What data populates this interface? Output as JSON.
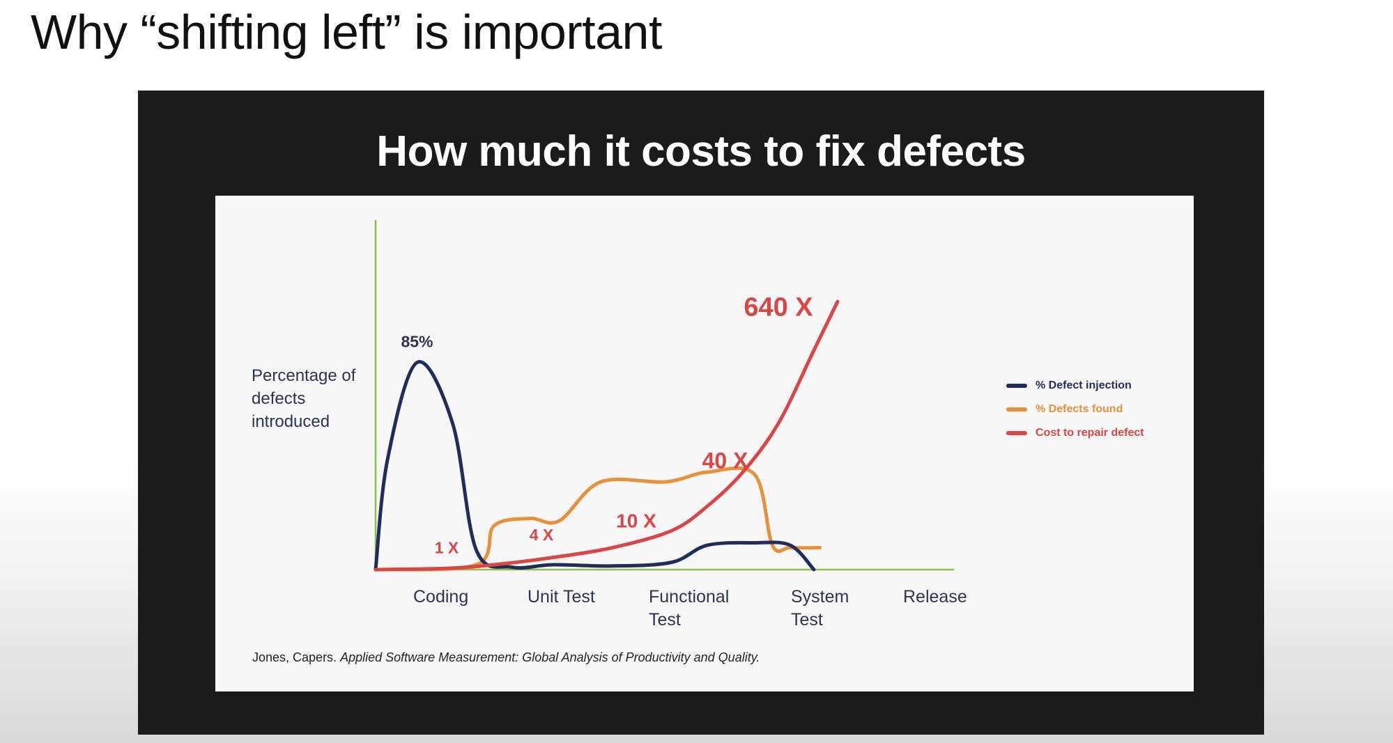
{
  "slide": {
    "title": "Why “shifting left” is important"
  },
  "panel": {
    "title": "How much it costs to fix defects"
  },
  "citation": {
    "author": "Jones, Capers.",
    "work": "Applied Software Measurement: Global Analysis of Productivity and Quality."
  },
  "colors": {
    "injection": "#1f2d5a",
    "found": "#e8913a",
    "cost": "#d94645",
    "axis": "#8cbf45"
  },
  "chart_data": {
    "type": "line",
    "title": "How much it costs to fix defects",
    "ylabel": "Percentage of defects introduced",
    "xlabel": "",
    "categories": [
      "Coding",
      "Unit Test",
      "Functional\nTest",
      "System\nTest",
      "Release"
    ],
    "legend_position": "right",
    "grid": false,
    "series": [
      {
        "name": "% Defect injection",
        "color": "#1f2d5a",
        "points": [
          [
            0,
            0
          ],
          [
            0.1,
            45
          ],
          [
            0.35,
            85
          ],
          [
            0.65,
            60
          ],
          [
            0.85,
            8
          ],
          [
            1.15,
            1
          ],
          [
            1.5,
            2
          ],
          [
            2,
            1.5
          ],
          [
            2.5,
            3
          ],
          [
            2.8,
            10
          ],
          [
            3.2,
            11
          ],
          [
            3.5,
            10
          ],
          [
            3.7,
            0
          ]
        ],
        "annotations": [
          {
            "text": "85%",
            "x": 0.35,
            "y": 85
          }
        ]
      },
      {
        "name": "% Defects found",
        "color": "#e8913a",
        "points": [
          [
            0,
            0
          ],
          [
            0.85,
            2
          ],
          [
            1.0,
            18
          ],
          [
            1.3,
            21
          ],
          [
            1.55,
            20
          ],
          [
            1.9,
            36
          ],
          [
            2.45,
            36
          ],
          [
            2.8,
            40
          ],
          [
            3.2,
            39
          ],
          [
            3.35,
            10
          ],
          [
            3.5,
            9
          ],
          [
            3.75,
            9
          ]
        ],
        "annotations": []
      },
      {
        "name": "Cost to repair defect",
        "color": "#d94645",
        "points": [
          [
            0,
            0
          ],
          [
            0.6,
            0.5
          ],
          [
            1.0,
            2
          ],
          [
            1.5,
            5
          ],
          [
            2.0,
            9
          ],
          [
            2.5,
            16
          ],
          [
            2.8,
            26
          ],
          [
            3.1,
            40
          ],
          [
            3.4,
            60
          ],
          [
            3.7,
            90
          ],
          [
            3.9,
            110
          ]
        ],
        "annotations": [
          {
            "text": "1 X",
            "x": 0.6,
            "y": 0.5
          },
          {
            "text": "4 X",
            "x": 1.4,
            "y": 4
          },
          {
            "text": "10 X",
            "x": 2.2,
            "y": 11
          },
          {
            "text": "40 X",
            "x": 2.95,
            "y": 33
          },
          {
            "text": "640 X",
            "x": 3.4,
            "y": 95
          }
        ]
      }
    ]
  }
}
